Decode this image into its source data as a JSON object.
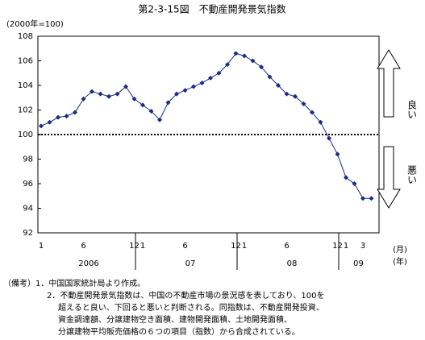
{
  "chart_data": {
    "type": "line",
    "title": "第2-3-15図　不動産開発景気指数",
    "y_unit_label": "(2000年=100)",
    "x_unit_label": "(月)",
    "year_unit_label": "(年)",
    "categories": [
      "1",
      null,
      null,
      null,
      null,
      "6",
      null,
      null,
      null,
      null,
      null,
      "12",
      "1",
      null,
      null,
      null,
      null,
      "6",
      null,
      null,
      null,
      null,
      null,
      "12",
      "1",
      null,
      null,
      null,
      null,
      "6",
      null,
      null,
      null,
      null,
      null,
      "12",
      "1",
      null,
      "3",
      null
    ],
    "years": [
      "2006",
      "07",
      "08",
      "09"
    ],
    "series": [
      {
        "name": "不動産開発景気指数",
        "color": "#1a2a8a",
        "values": [
          100.7,
          101.0,
          101.4,
          101.5,
          101.8,
          102.9,
          103.5,
          103.3,
          103.1,
          103.3,
          103.9,
          102.9,
          102.4,
          101.9,
          101.2,
          102.6,
          103.3,
          103.6,
          103.9,
          104.2,
          104.6,
          105.0,
          105.7,
          106.6,
          106.4,
          106.0,
          105.5,
          104.7,
          104.0,
          103.3,
          103.1,
          102.5,
          101.8,
          101.0,
          99.7,
          98.4,
          96.5,
          96.0,
          94.8,
          94.8
        ]
      }
    ],
    "reference_line": 100,
    "ylim": [
      92,
      108
    ],
    "yticks": [
      92,
      94,
      96,
      98,
      100,
      102,
      104,
      106,
      108
    ],
    "annotations": [
      "良い",
      "悪い"
    ],
    "notes": [
      "（備考）1．中国国家統計局より作成。",
      "2．不動産開発景気指数は、中国の不動産市場の景況感を表しており、100を",
      "超えると良い、下回ると悪いと判断される。同指数は、不動産開発投資、",
      "資金調達額、分譲建物空き面積、建物開発面積、土地開発面積、",
      "分譲建物平均販売価格の６つの項目（指数）から合成されている。"
    ]
  }
}
